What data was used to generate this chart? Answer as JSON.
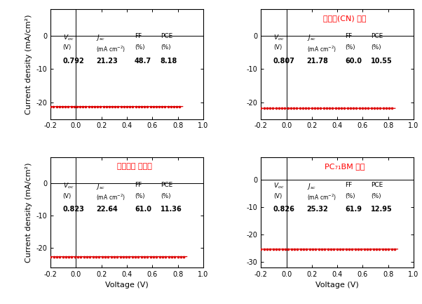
{
  "panels": [
    {
      "title": null,
      "title_color": "red",
      "Voc": 0.792,
      "Jsc": 21.23,
      "FF": 48.7,
      "PCE": 8.18,
      "ylim": [
        -25,
        8
      ],
      "yticks": [
        -20,
        -10,
        0
      ],
      "nVt": 0.2,
      "J0": 0.0001
    },
    {
      "title": "첸가제(CN) 적용",
      "title_color": "red",
      "Voc": 0.807,
      "Jsc": 21.78,
      "FF": 60.0,
      "PCE": 10.55,
      "ylim": [
        -25,
        8
      ],
      "yticks": [
        -20,
        -10,
        0
      ],
      "nVt": 0.1,
      "J0": 1e-06
    },
    {
      "title": "성막조건 최적화",
      "title_color": "red",
      "Voc": 0.823,
      "Jsc": 22.64,
      "FF": 61.0,
      "PCE": 11.36,
      "ylim": [
        -26,
        8
      ],
      "yticks": [
        -20,
        -10,
        0
      ],
      "nVt": 0.095,
      "J0": 1e-06
    },
    {
      "title": "PC₇₁BM 첸가",
      "title_color": "red",
      "Voc": 0.826,
      "Jsc": 25.32,
      "FF": 61.9,
      "PCE": 12.95,
      "ylim": [
        -32,
        8
      ],
      "yticks": [
        -30,
        -20,
        -10,
        0
      ],
      "nVt": 0.09,
      "J0": 1e-06
    }
  ],
  "xlabel": "Voltage (V)",
  "ylabel": "Current density (mA/cm²)",
  "xlim": [
    -0.2,
    1.0
  ],
  "xticks": [
    -0.2,
    0.0,
    0.2,
    0.4,
    0.6,
    0.8,
    1.0
  ],
  "curve_color": "#dd0000",
  "background_color": "white"
}
